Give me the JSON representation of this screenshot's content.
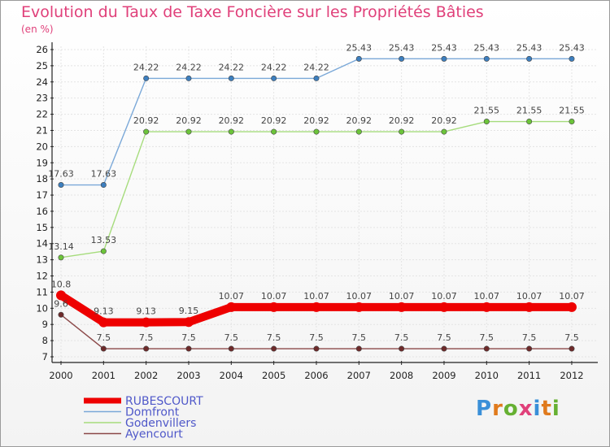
{
  "chart_data": {
    "type": "line",
    "title": "Evolution du Taux de Taxe Foncière sur les Propriétés Bâties",
    "ylabel": "(en %)",
    "xlabel": "",
    "ylim": [
      7,
      26
    ],
    "yticks": [
      7,
      8,
      9,
      10,
      11,
      12,
      13,
      14,
      15,
      16,
      17,
      18,
      19,
      20,
      21,
      22,
      23,
      24,
      25,
      26
    ],
    "categories": [
      "2000",
      "2001",
      "2002",
      "2003",
      "2004",
      "2005",
      "2006",
      "2007",
      "2008",
      "2009",
      "2010",
      "2011",
      "2012"
    ],
    "series": [
      {
        "name": "Domfront",
        "color": "#7aa8d8",
        "marker": "#3d7fbf",
        "values": [
          17.63,
          17.63,
          24.22,
          24.22,
          24.22,
          24.22,
          24.22,
          25.43,
          25.43,
          25.43,
          25.43,
          25.43,
          25.43
        ],
        "labels": [
          "17.63",
          "17.63",
          "24.22",
          "24.22",
          "24.22",
          "24.22",
          "24.22",
          "25.43",
          "25.43",
          "25.43",
          "25.43",
          "25.43",
          "25.43"
        ]
      },
      {
        "name": "Godenvillers",
        "color": "#a6dc7c",
        "marker": "#6cc43a",
        "values": [
          13.14,
          13.53,
          20.92,
          20.92,
          20.92,
          20.92,
          20.92,
          20.92,
          20.92,
          20.92,
          21.55,
          21.55,
          21.55
        ],
        "labels": [
          "13.14",
          "13.53",
          "20.92",
          "20.92",
          "20.92",
          "20.92",
          "20.92",
          "20.92",
          "20.92",
          "20.92",
          "21.55",
          "21.55",
          "21.55"
        ]
      },
      {
        "name": "Ayencourt",
        "color": "#8b4848",
        "marker": "#6e2a2a",
        "values": [
          9.6,
          7.5,
          7.5,
          7.5,
          7.5,
          7.5,
          7.5,
          7.5,
          7.5,
          7.5,
          7.5,
          7.5,
          7.5
        ],
        "labels": [
          "9.6",
          "7.5",
          "7.5",
          "7.5",
          "7.5",
          "7.5",
          "7.5",
          "7.5",
          "7.5",
          "7.5",
          "7.5",
          "7.5",
          "7.5"
        ]
      },
      {
        "name": "RUBESCOURT",
        "color": "#ee0000",
        "marker": "#ee0000",
        "bold": true,
        "values": [
          10.8,
          9.13,
          9.13,
          9.15,
          10.07,
          10.07,
          10.07,
          10.07,
          10.07,
          10.07,
          10.07,
          10.07,
          10.07
        ],
        "labels": [
          "10.8",
          "9.13",
          "9.13",
          "9.15",
          "10.07",
          "10.07",
          "10.07",
          "10.07",
          "10.07",
          "10.07",
          "10.07",
          "10.07",
          "10.07"
        ]
      }
    ],
    "legend": [
      "RUBESCOURT",
      "Domfront",
      "Godenvillers",
      "Ayencourt"
    ],
    "legend_position": "bottom-left"
  },
  "logo": {
    "text": "Proxiti",
    "letters": [
      "P",
      "r",
      "o",
      "x",
      "i",
      "t",
      "i"
    ],
    "colors": [
      "#3a8fd8",
      "#e07a1c",
      "#66b032",
      "#e0407a",
      "#3a8fd8",
      "#e07a1c",
      "#66b032"
    ]
  }
}
